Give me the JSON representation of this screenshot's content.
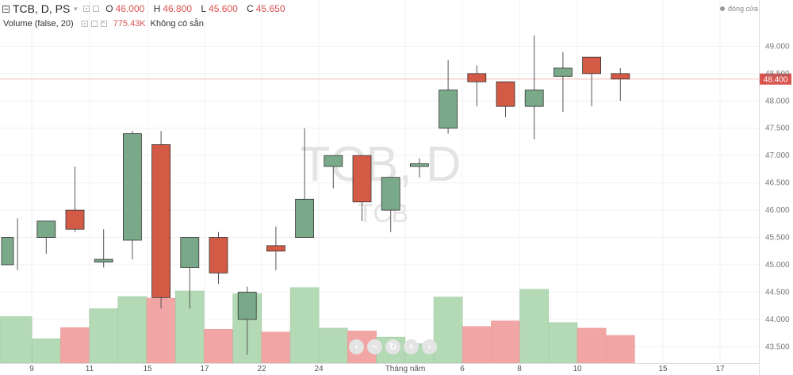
{
  "header": {
    "symbol": "TCB, D, PS",
    "o_label": "O",
    "o": "46.000",
    "h_label": "H",
    "h": "46.800",
    "l_label": "L",
    "l": "45.600",
    "c_label": "C",
    "c": "45.650"
  },
  "volume_header": {
    "name": "Volume (false, 20)",
    "value": "775.43K",
    "status": "Không có sẵn"
  },
  "market_status": "đóng cửa",
  "watermark": {
    "title": "TCB, D",
    "sub": "TCB"
  },
  "colors": {
    "up": "#7aa98a",
    "down": "#d35a45",
    "vol_up": "#b3d9b5",
    "vol_down": "#f2a5a5",
    "price_line": "#f4b6b6",
    "price_tag": "#d9534f"
  },
  "icons": [
    "collapse-icon",
    "chevron-down-icon",
    "eye-icon",
    "settings-icon",
    "close-icon",
    "zoom-out-icon",
    "zoom-in-icon",
    "reset-icon",
    "scroll-left-icon",
    "scroll-right-icon"
  ],
  "nav_symbols": {
    "prev": "‹",
    "minus": "−",
    "reset": "↻",
    "plus": "+",
    "next": "›"
  },
  "chart_data": {
    "type": "candlestick",
    "price_axis": {
      "ticks": [
        "49.000",
        "48.500",
        "48.000",
        "47.500",
        "47.000",
        "46.500",
        "46.000",
        "45.500",
        "45.000",
        "44.500",
        "44.000",
        "43.500"
      ],
      "ylim": [
        43.2,
        49.55
      ]
    },
    "current_price": "48.400",
    "x_ticks": [
      "9",
      "11",
      "15",
      "17",
      "22",
      "24",
      "Tháng năm",
      "6",
      "8",
      "10",
      "15",
      "17"
    ],
    "candles": [
      {
        "o": 45.0,
        "h": 45.85,
        "l": 44.9,
        "c": 45.5
      },
      {
        "o": 45.5,
        "h": 45.8,
        "l": 45.2,
        "c": 45.8
      },
      {
        "o": 46.0,
        "h": 46.8,
        "l": 45.6,
        "c": 45.65
      },
      {
        "o": 45.05,
        "h": 45.65,
        "l": 44.95,
        "c": 45.1
      },
      {
        "o": 45.45,
        "h": 47.45,
        "l": 45.1,
        "c": 47.4
      },
      {
        "o": 47.2,
        "h": 47.45,
        "l": 44.2,
        "c": 44.4
      },
      {
        "o": 44.95,
        "h": 45.5,
        "l": 44.2,
        "c": 45.5
      },
      {
        "o": 45.5,
        "h": 45.6,
        "l": 44.65,
        "c": 44.85
      },
      {
        "o": 44.0,
        "h": 44.6,
        "l": 43.35,
        "c": 44.5
      },
      {
        "o": 45.35,
        "h": 45.7,
        "l": 44.9,
        "c": 45.25
      },
      {
        "o": 45.5,
        "h": 47.5,
        "l": 45.5,
        "c": 46.2
      },
      {
        "o": 46.8,
        "h": 47.0,
        "l": 46.4,
        "c": 47.0
      },
      {
        "o": 47.0,
        "h": 47.0,
        "l": 45.8,
        "c": 46.15
      },
      {
        "o": 46.0,
        "h": 46.6,
        "l": 45.6,
        "c": 46.6
      },
      {
        "o": 46.8,
        "h": 46.95,
        "l": 46.6,
        "c": 46.85
      },
      {
        "o": 47.5,
        "h": 48.75,
        "l": 47.4,
        "c": 48.2
      },
      {
        "o": 48.5,
        "h": 48.65,
        "l": 47.9,
        "c": 48.35
      },
      {
        "o": 48.35,
        "h": 48.35,
        "l": 47.7,
        "c": 47.9
      },
      {
        "o": 47.9,
        "h": 49.2,
        "l": 47.3,
        "c": 48.2
      },
      {
        "o": 48.45,
        "h": 48.9,
        "l": 47.8,
        "c": 48.6
      },
      {
        "o": 48.8,
        "h": 48.8,
        "l": 47.9,
        "c": 48.5
      },
      {
        "o": 48.5,
        "h": 48.6,
        "l": 48.0,
        "c": 48.4
      }
    ],
    "volume_relative": [
      0.84,
      0.44,
      0.64,
      0.98,
      1.2,
      1.17,
      1.3,
      0.61,
      1.25,
      0.56,
      1.36,
      0.63,
      0.58,
      0.47,
      0.35,
      1.19,
      0.66,
      0.76,
      1.33,
      0.73,
      0.63,
      0.5
    ]
  }
}
